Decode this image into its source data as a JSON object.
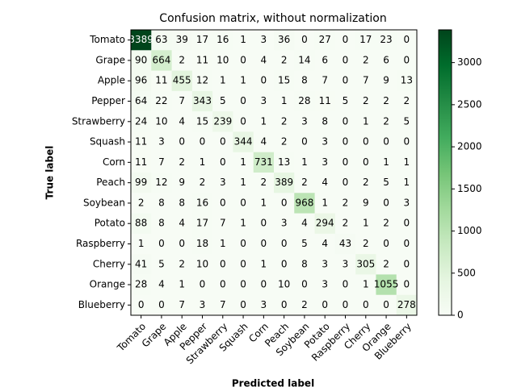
{
  "chart_data": {
    "type": "heatmap",
    "title": "Confusion matrix, without normalization",
    "x_label": "Predicted label",
    "y_label": "True label",
    "x_categories": [
      "Tomato",
      "Grape",
      "Apple",
      "Pepper",
      "Strawberry",
      "Squash",
      "Corn",
      "Peach",
      "Soybean",
      "Potato",
      "Raspberry",
      "Cherry",
      "Orange",
      "Blueberry"
    ],
    "y_categories": [
      "Tomato",
      "Grape",
      "Apple",
      "Pepper",
      "Strawberry",
      "Squash",
      "Corn",
      "Peach",
      "Soybean",
      "Potato",
      "Raspberry",
      "Cherry",
      "Orange",
      "Blueberry"
    ],
    "z": [
      [
        3389,
        63,
        39,
        17,
        16,
        1,
        3,
        36,
        0,
        27,
        0,
        17,
        23,
        0
      ],
      [
        90,
        664,
        2,
        11,
        10,
        0,
        4,
        2,
        14,
        6,
        0,
        2,
        6,
        0
      ],
      [
        96,
        11,
        455,
        12,
        1,
        1,
        0,
        15,
        8,
        7,
        0,
        7,
        9,
        13
      ],
      [
        64,
        22,
        7,
        343,
        5,
        0,
        3,
        1,
        28,
        11,
        5,
        2,
        2,
        2
      ],
      [
        24,
        10,
        4,
        15,
        239,
        0,
        1,
        2,
        3,
        8,
        0,
        1,
        2,
        5
      ],
      [
        11,
        3,
        0,
        0,
        0,
        344,
        4,
        2,
        0,
        3,
        0,
        0,
        0,
        0
      ],
      [
        11,
        7,
        2,
        1,
        0,
        1,
        731,
        13,
        1,
        3,
        0,
        0,
        1,
        1
      ],
      [
        99,
        12,
        9,
        2,
        3,
        1,
        2,
        389,
        2,
        4,
        0,
        2,
        5,
        1
      ],
      [
        2,
        8,
        8,
        16,
        0,
        0,
        1,
        0,
        968,
        1,
        2,
        9,
        0,
        3
      ],
      [
        88,
        8,
        4,
        17,
        7,
        1,
        0,
        3,
        4,
        294,
        2,
        1,
        2,
        0
      ],
      [
        1,
        0,
        0,
        18,
        1,
        0,
        0,
        0,
        5,
        4,
        43,
        2,
        0,
        0
      ],
      [
        41,
        5,
        2,
        10,
        0,
        0,
        1,
        0,
        8,
        3,
        3,
        305,
        2,
        0
      ],
      [
        28,
        4,
        1,
        0,
        0,
        0,
        0,
        10,
        0,
        3,
        0,
        1,
        1055,
        0
      ],
      [
        0,
        0,
        7,
        3,
        7,
        0,
        3,
        0,
        2,
        0,
        0,
        0,
        0,
        278
      ]
    ],
    "colormap": "Greens",
    "clim": [
      0,
      3389
    ],
    "cticks": [
      0,
      500,
      1000,
      1500,
      2000,
      2500,
      3000
    ]
  }
}
